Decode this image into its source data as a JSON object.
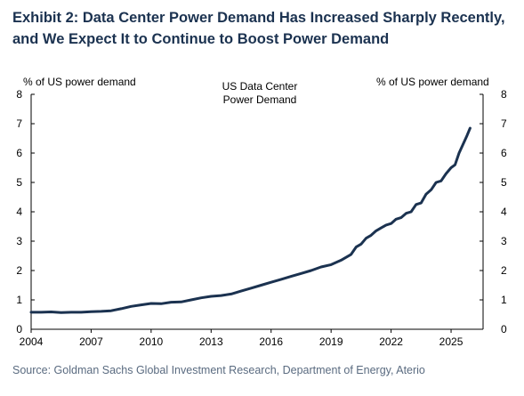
{
  "header": {
    "title_line1": "Exhibit 2: Data Center Power Demand Has Increased Sharply Recently,",
    "title_line2": "and We Expect It to Continue to Boost Power Demand"
  },
  "footer": {
    "source": "Source: Goldman Sachs Global Investment Research, Department of Energy, Aterio"
  },
  "chart_data": {
    "type": "line",
    "title": "US Data Center Power Demand",
    "title_lines": [
      "US Data Center",
      "Power Demand"
    ],
    "ylabel_left": "% of US power demand",
    "ylabel_right": "% of US power demand",
    "xlim": [
      2004,
      2026.6
    ],
    "ylim": [
      0,
      8
    ],
    "x_ticks": [
      "2004",
      "2007",
      "2010",
      "2013",
      "2016",
      "2019",
      "2022",
      "2025"
    ],
    "y_ticks": [
      "0",
      "1",
      "2",
      "3",
      "4",
      "5",
      "6",
      "7",
      "8"
    ],
    "grid": false,
    "legend": "none",
    "line_color": "#1b3250",
    "series": [
      {
        "x": [
          2004.0,
          2004.5,
          2005.0,
          2005.5,
          2006.0,
          2006.5,
          2007.0,
          2007.5,
          2008.0,
          2008.5,
          2009.0,
          2009.5,
          2010.0,
          2010.5,
          2011.0,
          2011.5,
          2012.0,
          2012.5,
          2013.0,
          2013.5,
          2014.0,
          2014.5,
          2015.0,
          2015.5,
          2016.0,
          2016.5,
          2017.0,
          2017.5,
          2018.0,
          2018.5,
          2019.0,
          2019.5,
          2020.0,
          2020.25,
          2020.5,
          2020.75,
          2021.0,
          2021.25,
          2021.5,
          2021.75,
          2022.0,
          2022.25,
          2022.5,
          2022.75,
          2023.0,
          2023.25,
          2023.5,
          2023.75,
          2024.0,
          2024.25,
          2024.5,
          2024.75,
          2025.0,
          2025.2,
          2025.4,
          2025.6,
          2025.8,
          2025.95
        ],
        "values": [
          0.58,
          0.58,
          0.59,
          0.57,
          0.58,
          0.58,
          0.6,
          0.61,
          0.63,
          0.7,
          0.78,
          0.83,
          0.88,
          0.87,
          0.92,
          0.93,
          1.0,
          1.07,
          1.12,
          1.15,
          1.2,
          1.3,
          1.4,
          1.5,
          1.6,
          1.7,
          1.8,
          1.9,
          2.0,
          2.12,
          2.2,
          2.35,
          2.55,
          2.8,
          2.9,
          3.1,
          3.2,
          3.35,
          3.45,
          3.55,
          3.6,
          3.75,
          3.8,
          3.95,
          4.0,
          4.25,
          4.3,
          4.6,
          4.75,
          5.0,
          5.05,
          5.3,
          5.5,
          5.6,
          6.0,
          6.3,
          6.6,
          6.85
        ]
      }
    ]
  }
}
